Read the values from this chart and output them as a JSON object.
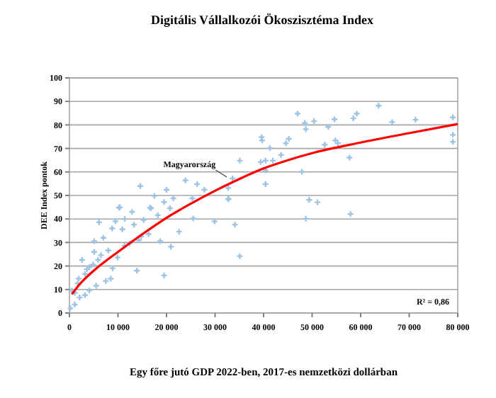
{
  "chart_data": {
    "type": "scatter",
    "title": "Digitális Vállalkozói  Ökoszisztéma  Index",
    "xlabel": "Egy főre jutó GDP 2022-ben, 2017-es nemzetközi dollárban",
    "ylabel": "DEE Index pontok",
    "xlim": [
      0,
      80000
    ],
    "ylim": [
      0,
      100
    ],
    "xticks": [
      0,
      {
        "value": 10000,
        "label": "10 000"
      },
      {
        "value": 20000,
        "label": "20 000"
      },
      {
        "value": 30000,
        "label": "30 000"
      },
      {
        "value": 40000,
        "label": "40 000"
      },
      {
        "value": 50000,
        "label": "50 000"
      },
      {
        "value": 60000,
        "label": "60 000"
      },
      {
        "value": 70000,
        "label": "70 000"
      },
      {
        "value": 80000,
        "label": "80 000"
      }
    ],
    "yticks": [
      0,
      10,
      20,
      30,
      40,
      50,
      60,
      70,
      80,
      90,
      100
    ],
    "grid": "y",
    "marker": "cross",
    "annotations": [
      {
        "text": "Magyarország",
        "x": 33600,
        "y": 57.2
      },
      "R² = 0,86"
    ],
    "series": [
      {
        "color": "#9dc3e6",
        "x": [
          2600,
          5100,
          5100,
          7000,
          8800,
          9500,
          11400,
          12900,
          15300,
          16800,
          18200,
          20700,
          19500,
          13900,
          8500,
          5500,
          4100,
          3200,
          2100,
          1100,
          1700,
          3600,
          4900,
          6500,
          8000,
          9900,
          11400,
          12400,
          14800,
          16300,
          18700,
          20900,
          22600,
          25500,
          29900,
          34100,
          35100,
          32800,
          6100,
          10900,
          13300,
          14300,
          500,
          1100,
          1900,
          3200,
          4100,
          5900,
          8900,
          7500,
          10400,
          200,
          14600,
          10200,
          23900,
          26300,
          27800,
          25300,
          32700,
          32700,
          33600,
          35100,
          39600,
          41900,
          40400,
          16600,
          17500,
          20000,
          21400,
          19500,
          47000,
          48500,
          48700,
          50400,
          53300,
          54600,
          58500,
          59200,
          63700,
          66500,
          71300,
          79000,
          79000,
          79000,
          39700,
          41300,
          44600,
          45200,
          43600,
          39400,
          40400,
          40400,
          52600,
          54800,
          55300,
          57700,
          47900,
          49400,
          51100,
          48700,
          57900
        ],
        "values": [
          22.6,
          26,
          30.6,
          32,
          36,
          39,
          40,
          43,
          39.6,
          44.6,
          41.6,
          44.6,
          16,
          18,
          14.6,
          11.6,
          9.6,
          7.6,
          6.6,
          3.6,
          12.6,
          18.6,
          20.6,
          24.6,
          26.6,
          23.6,
          28.6,
          29.6,
          32.6,
          33.6,
          30.6,
          28.2,
          34.6,
          40.2,
          39,
          37.6,
          24.2,
          48.6,
          38.6,
          35.6,
          37.6,
          31,
          9.6,
          8.6,
          14.6,
          16.6,
          19.6,
          22.6,
          19,
          13.6,
          45,
          2,
          54,
          44.8,
          56.4,
          54.8,
          52.4,
          48.8,
          53.2,
          48.4,
          57.2,
          64.8,
          74.8,
          64.8,
          54.8,
          44.8,
          49.8,
          52.4,
          48.8,
          47.2,
          84.8,
          80.8,
          78.2,
          81.6,
          79.2,
          82.4,
          82.8,
          84.8,
          88.2,
          81.2,
          82.2,
          83.2,
          75.8,
          72.8,
          73.4,
          70.2,
          72.2,
          74.1,
          67.2,
          64.2,
          64.8,
          60.7,
          71.6,
          73.4,
          72.2,
          66.1,
          60.1,
          48.1,
          47.1,
          40.1,
          42.1
        ]
      },
      {
        "type": "line",
        "color": "#ff0000",
        "marker": "none",
        "x": [
          500,
          2000,
          5000,
          10000,
          15000,
          20000,
          25000,
          30000,
          35000,
          40000,
          45000,
          50000,
          60000,
          70000,
          80000
        ],
        "values": [
          8,
          12,
          18,
          26,
          33.5,
          40.5,
          46.5,
          52,
          57,
          61.5,
          65,
          68,
          72.5,
          76.5,
          80.4
        ]
      }
    ]
  }
}
